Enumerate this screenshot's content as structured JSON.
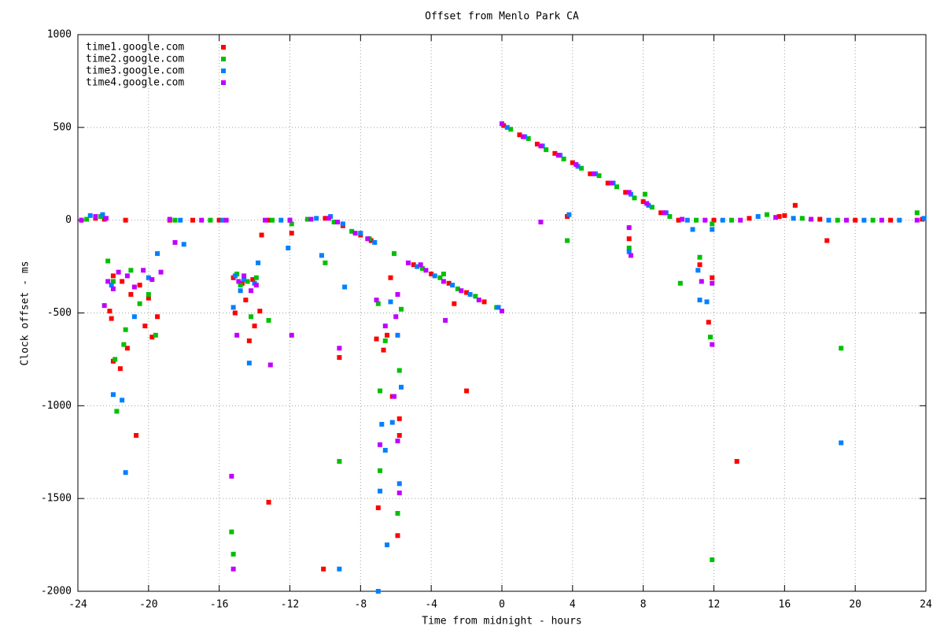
{
  "chart_data": {
    "type": "scatter",
    "title": "Offset from Menlo Park CA",
    "x_label": "Time from midnight - hours",
    "y_label": "Clock offset - ms",
    "xlim": [
      -24,
      24
    ],
    "ylim": [
      -2000,
      1000
    ],
    "xticks": [
      -24,
      -20,
      -16,
      -12,
      -8,
      -4,
      0,
      4,
      8,
      12,
      16,
      20,
      24
    ],
    "yticks": [
      -2000,
      -1500,
      -1000,
      -500,
      0,
      500,
      1000
    ],
    "grid": true,
    "legend": "top-left",
    "series": [
      {
        "name": "time1.google.com",
        "color": "#ff0000",
        "x": [
          -23.8,
          -23,
          -22.5,
          -18.8,
          -17.5,
          -16,
          -13.2,
          -12,
          -11,
          -10,
          -9,
          -8,
          -7.4,
          -5,
          -4,
          -3,
          -2,
          -1,
          0.1,
          1,
          2,
          3,
          4,
          5,
          6,
          7,
          8,
          9,
          10,
          12,
          14,
          16,
          18,
          20,
          22,
          23.8,
          -21.3,
          -22.2,
          -22.1,
          -22,
          -21.6,
          -21.2,
          -20.7,
          -20.2,
          -19.8,
          -19.5,
          -21,
          -20.5,
          -22,
          -21.5,
          -20,
          -15.1,
          -14.5,
          -14.3,
          -14,
          -13.6,
          -13.7,
          -13.2,
          -11.9,
          -10.1,
          -9.2,
          -7,
          -7.1,
          -6.7,
          -6.5,
          -6.2,
          -5.9,
          -5.8,
          -5.8,
          -6.3,
          -2.7,
          -2,
          3.7,
          7.2,
          11.2,
          11.7,
          11.9,
          13.3,
          15.7,
          16.6,
          18.4,
          -15.2,
          -14.7,
          -14.1
        ],
        "values": [
          0,
          10,
          5,
          0,
          0,
          0,
          0,
          0,
          5,
          10,
          -30,
          -80,
          -110,
          -240,
          -290,
          -340,
          -390,
          -440,
          510,
          460,
          410,
          360,
          310,
          250,
          200,
          150,
          100,
          40,
          0,
          0,
          10,
          25,
          5,
          0,
          0,
          5,
          0,
          -490,
          -530,
          -760,
          -800,
          -690,
          -1160,
          -570,
          -630,
          -520,
          -400,
          -350,
          -300,
          -330,
          -420,
          -500,
          -430,
          -650,
          -570,
          -80,
          -490,
          -1520,
          -70,
          -1880,
          -740,
          -1550,
          -640,
          -700,
          -620,
          -950,
          -1700,
          -1160,
          -1070,
          -310,
          -450,
          -920,
          20,
          -100,
          -240,
          -550,
          -310,
          -1300,
          20,
          80,
          -110,
          -310,
          -340,
          -320
        ]
      },
      {
        "name": "time2.google.com",
        "color": "#00c000",
        "x": [
          -23.5,
          -22.7,
          -18.5,
          -16.5,
          -13,
          -11,
          -9.5,
          -8.5,
          -7.5,
          -4.5,
          -3.5,
          -2.5,
          -1.5,
          -0.3,
          0.5,
          1.5,
          2.5,
          3.5,
          4.5,
          5.5,
          6.5,
          7.5,
          8.5,
          9.5,
          11,
          13,
          15,
          17,
          19,
          21,
          23.5,
          -22.3,
          -21.8,
          -21.9,
          -21.4,
          -21.3,
          -20.5,
          -20,
          -19.6,
          -21,
          -22,
          -15.3,
          -15.2,
          -14.8,
          -14.2,
          -13.2,
          -11.9,
          -10,
          -9.2,
          -7,
          -6.9,
          -6.9,
          -6.6,
          -6.1,
          -5.9,
          -5.8,
          -5.7,
          -3.3,
          3.7,
          7.2,
          8.1,
          10.1,
          11.2,
          11.8,
          11.9,
          11.9,
          19.2,
          -15,
          -14.4,
          -13.9
        ],
        "values": [
          5,
          20,
          0,
          0,
          0,
          5,
          -10,
          -60,
          -100,
          -260,
          -310,
          -370,
          -410,
          -470,
          490,
          440,
          380,
          330,
          280,
          240,
          180,
          120,
          70,
          20,
          0,
          0,
          30,
          10,
          0,
          0,
          40,
          -220,
          -1030,
          -750,
          -670,
          -590,
          -450,
          -400,
          -620,
          -270,
          -330,
          -1680,
          -1800,
          -350,
          -520,
          -540,
          -20,
          -230,
          -1300,
          -450,
          -1350,
          -920,
          -650,
          -180,
          -1580,
          -810,
          -480,
          -290,
          -110,
          -150,
          140,
          -340,
          -200,
          -630,
          -1830,
          -20,
          -690,
          -290,
          -330,
          -310
        ]
      },
      {
        "name": "time3.google.com",
        "color": "#0080ff",
        "x": [
          -23.3,
          -22.6,
          -18.2,
          -15.8,
          -12.5,
          -10.5,
          -9.7,
          -9,
          -8,
          -7.2,
          -4.8,
          -3.8,
          -2.8,
          -1.8,
          -0.2,
          0.3,
          1.3,
          2.3,
          3.3,
          4.3,
          5.3,
          6.3,
          7.3,
          8.3,
          9.3,
          10.5,
          12.5,
          14.5,
          16.5,
          18.5,
          20.5,
          22.5,
          23.9,
          -22,
          -21.5,
          -21.3,
          -22.1,
          -20.8,
          -20,
          -19.5,
          -18,
          -15.2,
          -14.8,
          -14.3,
          -13.8,
          -12.1,
          -10.2,
          -9.2,
          -8.9,
          -7,
          -6.9,
          -6.8,
          -6.6,
          -6.5,
          -6.3,
          -6.2,
          -5.9,
          -5.8,
          -5.7,
          3.8,
          7.2,
          11.1,
          11.2,
          11.6,
          10.8,
          11.9,
          19.2,
          -15.1,
          -14.6,
          -14
        ],
        "values": [
          25,
          30,
          0,
          0,
          0,
          10,
          20,
          -20,
          -70,
          -120,
          -250,
          -300,
          -350,
          -400,
          -470,
          500,
          450,
          400,
          350,
          290,
          250,
          200,
          140,
          80,
          40,
          0,
          0,
          20,
          10,
          0,
          0,
          0,
          10,
          -940,
          -970,
          -1360,
          -350,
          -520,
          -310,
          -180,
          -130,
          -470,
          -380,
          -770,
          -230,
          -150,
          -190,
          -1880,
          -360,
          -2000,
          -1460,
          -1100,
          -1240,
          -1750,
          -440,
          -1090,
          -620,
          -1420,
          -900,
          30,
          -170,
          -270,
          -430,
          -440,
          -50,
          -50,
          -1200,
          -300,
          -320,
          -340
        ]
      },
      {
        "name": "time4.google.com",
        "color": "#c000ff",
        "x": [
          -23.8,
          -23,
          -22.4,
          -18.8,
          -17,
          -15.6,
          -13.4,
          -12,
          -10.8,
          -9.8,
          -9.3,
          -8.3,
          -7.6,
          -5.3,
          -4.3,
          -3.3,
          -2.3,
          -1.3,
          0,
          0,
          1.2,
          2.2,
          3.2,
          4.2,
          5.2,
          6.2,
          7.2,
          8.2,
          9.2,
          10.2,
          11.5,
          13.5,
          15.5,
          17.5,
          19.5,
          21.5,
          23.5,
          -22.5,
          -22.3,
          -22,
          -21.7,
          -21.2,
          -20.8,
          -20.3,
          -19.8,
          -19.3,
          -18.5,
          -15.3,
          -15.2,
          -15,
          -14.9,
          -14.6,
          -14.2,
          -13.9,
          -13.1,
          -11.9,
          -9.2,
          -7.1,
          -6.9,
          -6.6,
          -6.1,
          -6,
          -5.9,
          -5.8,
          -5.9,
          -4.6,
          -3.2,
          2.2,
          7.2,
          7.3,
          11.3,
          11.9,
          11.9
        ],
        "values": [
          0,
          20,
          10,
          5,
          0,
          0,
          0,
          0,
          5,
          10,
          -10,
          -70,
          -100,
          -230,
          -270,
          -330,
          -380,
          -430,
          -490,
          520,
          450,
          400,
          350,
          300,
          250,
          200,
          150,
          90,
          40,
          5,
          0,
          0,
          15,
          5,
          0,
          0,
          0,
          -460,
          -330,
          -370,
          -280,
          -300,
          -360,
          -270,
          -320,
          -280,
          -120,
          -1380,
          -1880,
          -620,
          -330,
          -300,
          -380,
          -350,
          -780,
          -620,
          -690,
          -430,
          -1210,
          -570,
          -950,
          -520,
          -1190,
          -1470,
          -400,
          -240,
          -540,
          -10,
          -40,
          -190,
          -330,
          -670,
          -340
        ]
      }
    ]
  }
}
